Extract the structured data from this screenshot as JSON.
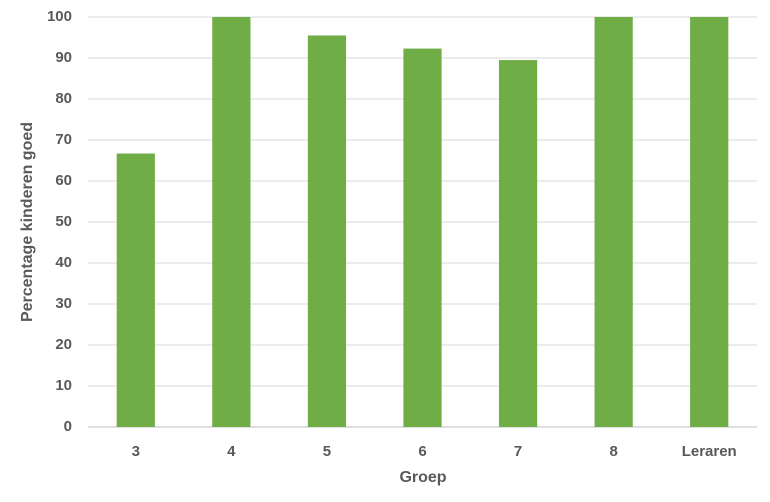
{
  "chart_data": {
    "type": "bar",
    "x_label": "Groep",
    "y_label": "Percentage kinderen goed",
    "categories": [
      "3",
      "4",
      "5",
      "6",
      "7",
      "8",
      "Leraren"
    ],
    "values": [
      66.7,
      100,
      95.5,
      92.3,
      89.5,
      100,
      100
    ],
    "color": "#70ad47",
    "ylim": [
      0,
      100
    ],
    "yticks": [
      0,
      10,
      20,
      30,
      40,
      50,
      60,
      70,
      80,
      90,
      100
    ],
    "grid": true
  }
}
